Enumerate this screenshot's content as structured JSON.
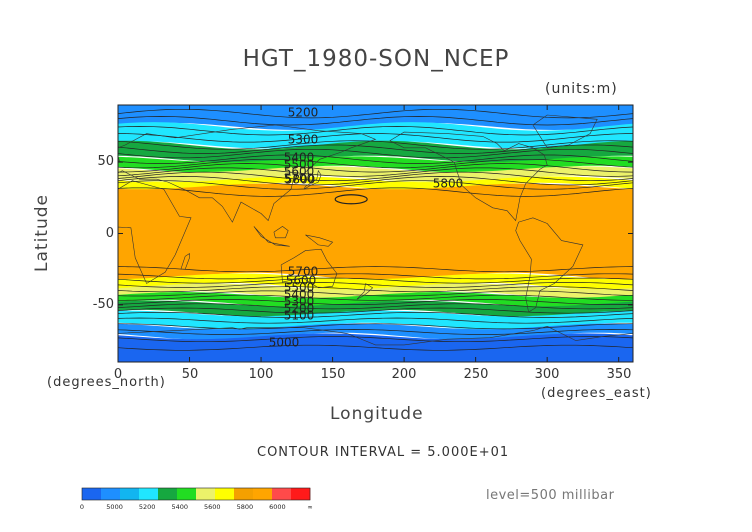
{
  "title": "HGT_1980-SON_NCEP",
  "units": "(units:m)",
  "y_axis": {
    "label": "Latitude",
    "sublabel": "(degrees_north)",
    "ticks": [
      "50",
      "0",
      "-50"
    ]
  },
  "x_axis": {
    "label": "Longitude",
    "sublabel": "(degrees_east)",
    "ticks": [
      "0",
      "50",
      "100",
      "150",
      "200",
      "250",
      "300",
      "350"
    ]
  },
  "contour_interval": "CONTOUR INTERVAL = 5.000E+01",
  "level": "level=500 millibar",
  "contour_labels": [
    "5200",
    "5300",
    "5400",
    "5500",
    "5600",
    "5700",
    "5800",
    "5800",
    "5700",
    "5600",
    "5500",
    "5400",
    "5300",
    "5200",
    "5100",
    "5000"
  ],
  "colorbar": {
    "labels": [
      "0",
      "5000",
      "5200",
      "5400",
      "5600",
      "5800",
      "6000",
      "∞"
    ],
    "colors": [
      "#1a66f0",
      "#1e8fff",
      "#12b5f0",
      "#20e6ff",
      "#16a840",
      "#22dd22",
      "#ecf26a",
      "#ffff00",
      "#f4a000",
      "#ffa500",
      "#ff4a4a",
      "#ff1a1a"
    ]
  },
  "chart_data": {
    "type": "heatmap",
    "title": "HGT_1980-SON_NCEP",
    "xlabel": "Longitude",
    "ylabel": "Latitude",
    "xlim": [
      0,
      360
    ],
    "ylim": [
      -90,
      90
    ],
    "variable_units": "m",
    "level": "500 millibar",
    "contour_interval": 50,
    "bands": [
      {
        "lat": [
          75,
          90
        ],
        "value_range": [
          5000,
          5200
        ],
        "color": "#1e8fff"
      },
      {
        "lat": [
          62,
          75
        ],
        "value_range": [
          5200,
          5400
        ],
        "color": "#20e6ff"
      },
      {
        "lat": [
          52,
          62
        ],
        "value_range": [
          5400,
          5500
        ],
        "color": "#16a840"
      },
      {
        "lat": [
          45,
          52
        ],
        "value_range": [
          5500,
          5600
        ],
        "color": "#22dd22"
      },
      {
        "lat": [
          38,
          45
        ],
        "value_range": [
          5600,
          5700
        ],
        "color": "#ecf26a"
      },
      {
        "lat": [
          33,
          38
        ],
        "value_range": [
          5700,
          5800
        ],
        "color": "#ffff00"
      },
      {
        "lat": [
          -30,
          33
        ],
        "value_range": [
          5800,
          6000
        ],
        "color": "#ffa500"
      },
      {
        "lat": [
          -37,
          -30
        ],
        "value_range": [
          5700,
          5800
        ],
        "color": "#ffff00"
      },
      {
        "lat": [
          -43,
          -37
        ],
        "value_range": [
          5600,
          5700
        ],
        "color": "#ecf26a"
      },
      {
        "lat": [
          -49,
          -43
        ],
        "value_range": [
          5500,
          5600
        ],
        "color": "#22dd22"
      },
      {
        "lat": [
          -56,
          -49
        ],
        "value_range": [
          5400,
          5500
        ],
        "color": "#16a840"
      },
      {
        "lat": [
          -65,
          -56
        ],
        "value_range": [
          5200,
          5400
        ],
        "color": "#20e6ff"
      },
      {
        "lat": [
          -72,
          -65
        ],
        "value_range": [
          5000,
          5200
        ],
        "color": "#1e8fff"
      },
      {
        "lat": [
          -90,
          -72
        ],
        "value_range": [
          0,
          5000
        ],
        "color": "#1a66f0"
      }
    ]
  }
}
